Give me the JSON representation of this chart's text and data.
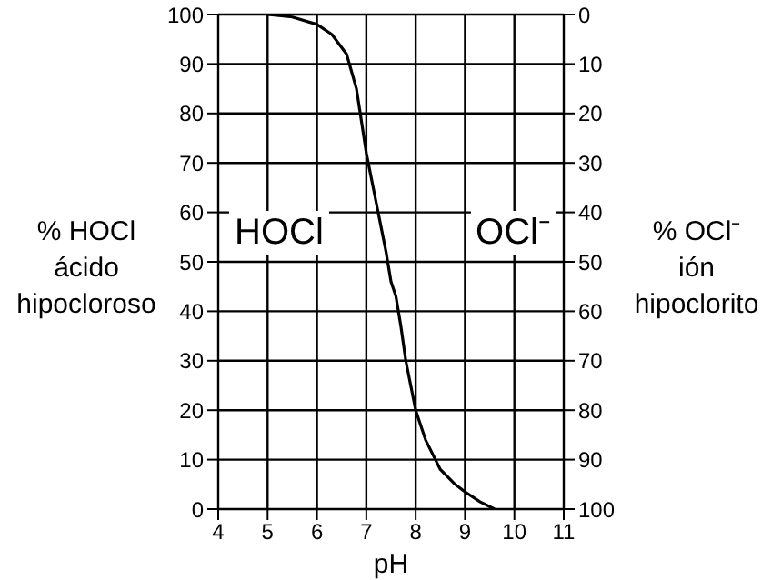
{
  "chart_data": {
    "type": "line",
    "xlabel": "pH",
    "ylabel": "% HOCl\nácido\nhipocloroso",
    "y2label": "% OCl⁻\nión\nhipoclorito",
    "x": [
      5,
      5.5,
      6,
      6.3,
      6.6,
      6.8,
      7,
      7.2,
      7.4,
      7.5,
      7.6,
      7.7,
      7.8,
      7.9,
      8,
      8.2,
      8.5,
      8.8,
      9,
      9.3,
      9.6
    ],
    "series": [
      {
        "color": "#000000",
        "values": [
          100,
          99.5,
          98,
          96,
          92,
          85,
          72,
          62,
          52,
          46,
          43,
          37,
          30,
          25,
          20,
          14,
          8,
          5,
          3.5,
          1.5,
          0
        ]
      }
    ],
    "xlim": [
      4,
      11
    ],
    "xticks": [
      4,
      5,
      6,
      7,
      8,
      9,
      10,
      11
    ],
    "ylim": [
      0,
      100
    ],
    "yticks": [
      0,
      10,
      20,
      30,
      40,
      50,
      60,
      70,
      80,
      90,
      100
    ],
    "y2lim": [
      100,
      0
    ],
    "y2ticks": [
      0,
      10,
      20,
      30,
      40,
      50,
      60,
      70,
      80,
      90,
      100
    ],
    "grid": true,
    "annotations": [
      "HOCl",
      "OCl⁻"
    ]
  }
}
